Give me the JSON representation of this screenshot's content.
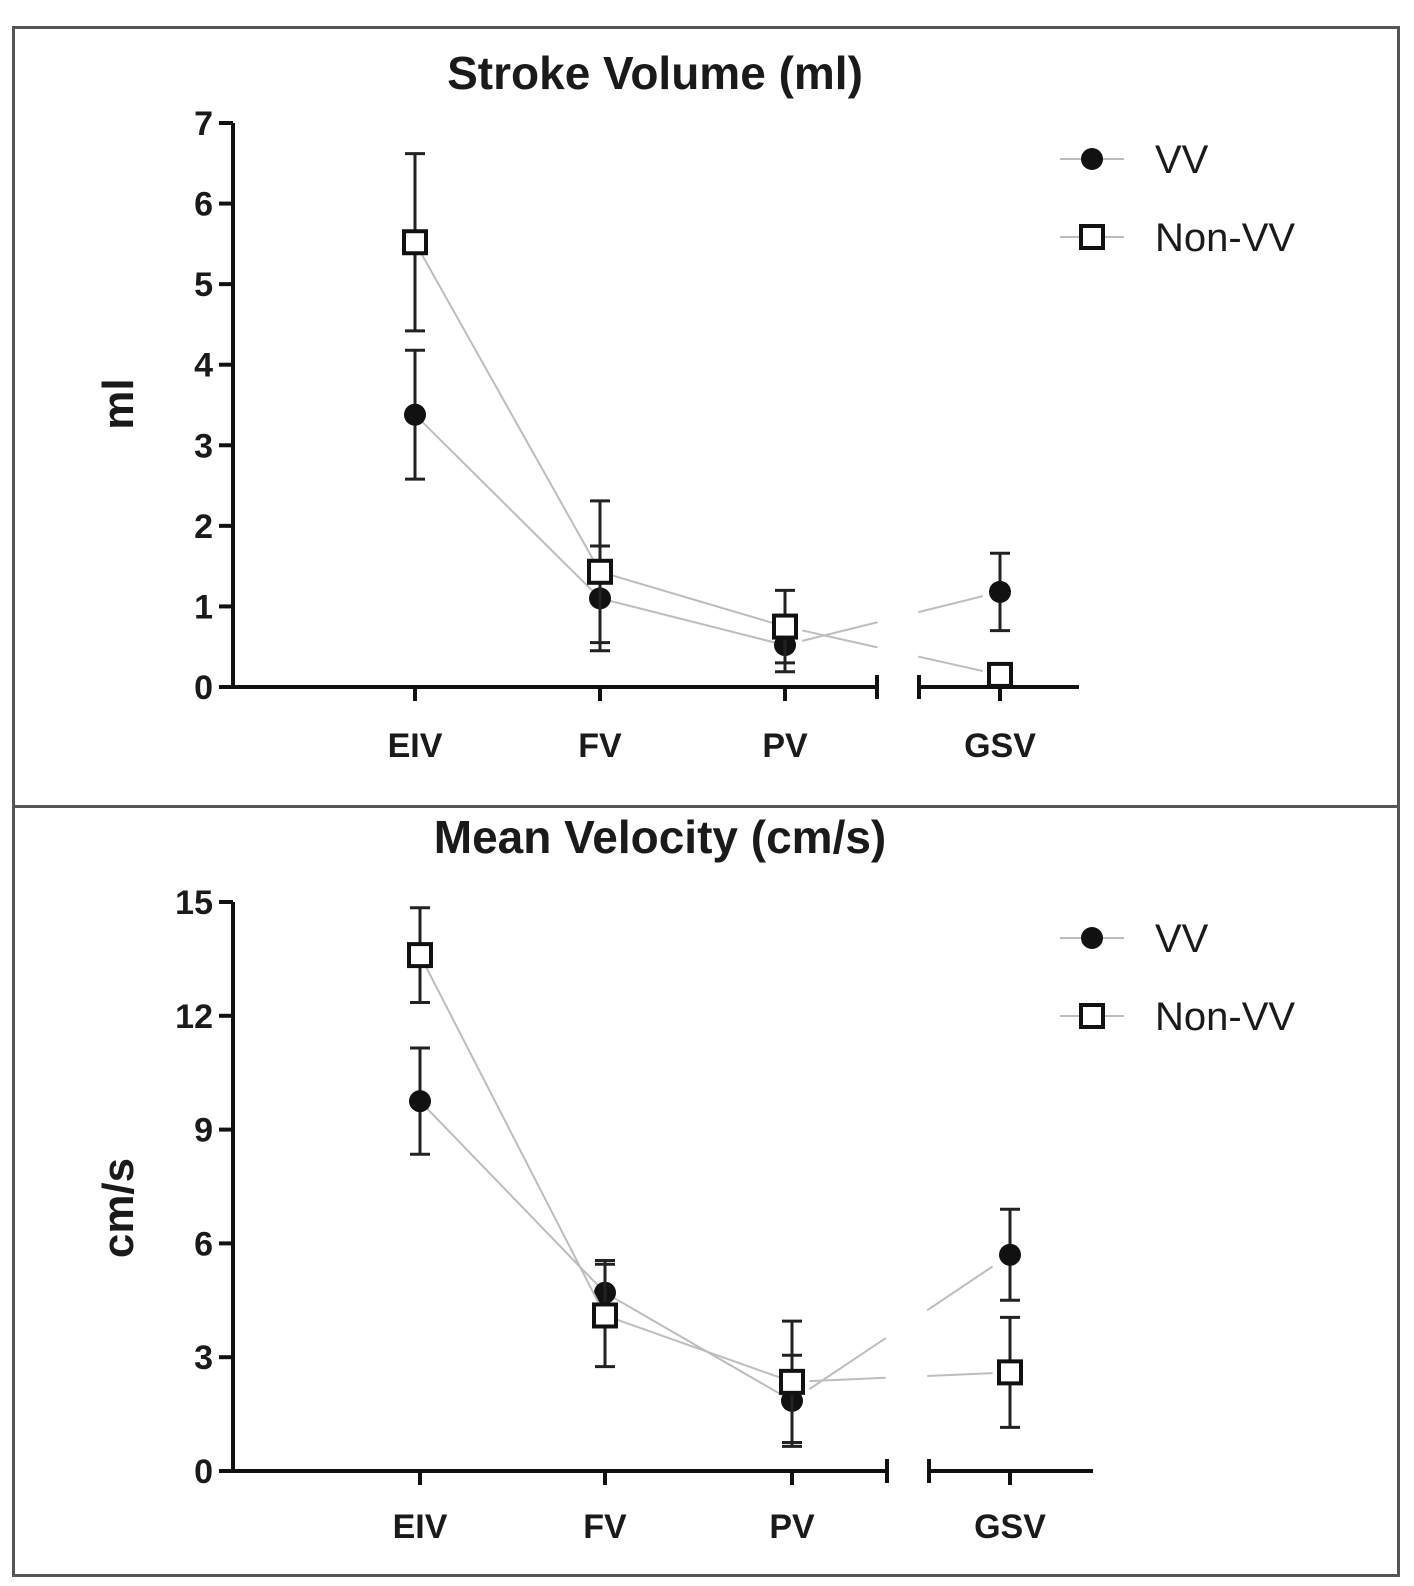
{
  "chart_data": [
    {
      "type": "line",
      "title": "Stroke Volume (ml)",
      "xlabel": "",
      "ylabel": "ml",
      "categories": [
        "EIV",
        "FV",
        "PV",
        "GSV"
      ],
      "ylim": [
        0,
        7
      ],
      "yticks": [
        0,
        1,
        2,
        3,
        4,
        5,
        6,
        7
      ],
      "broken_x_axis_before": "GSV",
      "legend_position": "top-right",
      "series": [
        {
          "name": "VV",
          "marker": "filled-circle",
          "values": [
            3.38,
            1.1,
            0.52,
            1.18
          ],
          "error": [
            0.8,
            0.65,
            0.33,
            0.48
          ]
        },
        {
          "name": "Non-VV",
          "marker": "open-square",
          "values": [
            5.52,
            1.43,
            0.75,
            0.15
          ],
          "error": [
            1.1,
            0.88,
            0.45,
            0.05
          ]
        }
      ]
    },
    {
      "type": "line",
      "title": "Mean Velocity (cm/s)",
      "xlabel": "",
      "ylabel": "cm/s",
      "categories": [
        "EIV",
        "FV",
        "PV",
        "GSV"
      ],
      "ylim": [
        0,
        15
      ],
      "yticks": [
        0,
        3,
        6,
        9,
        12,
        15
      ],
      "broken_x_axis_before": "GSV",
      "legend_position": "top-right",
      "series": [
        {
          "name": "VV",
          "marker": "filled-circle",
          "values": [
            9.75,
            4.7,
            1.85,
            5.7
          ],
          "error": [
            1.4,
            0.85,
            1.2,
            1.2
          ]
        },
        {
          "name": "Non-VV",
          "marker": "open-square",
          "values": [
            13.6,
            4.1,
            2.35,
            2.6
          ],
          "error": [
            1.25,
            1.35,
            1.6,
            1.45
          ]
        }
      ]
    }
  ]
}
